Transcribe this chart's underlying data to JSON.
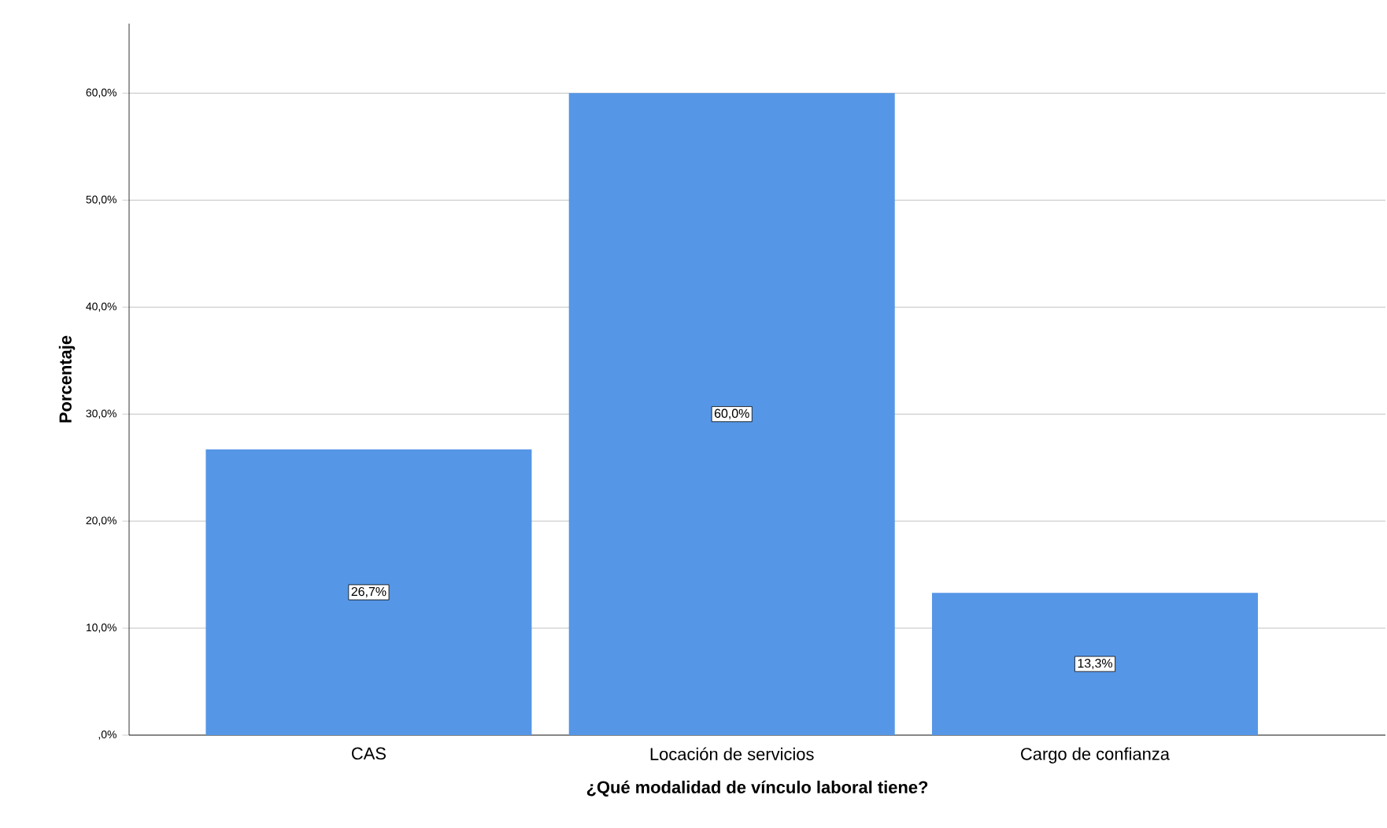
{
  "chart_data": {
    "type": "bar",
    "xlabel": "¿Qué modalidad de vínculo laboral tiene?",
    "ylabel": "Porcentaje",
    "categories": [
      "CAS",
      "Locación de servicios",
      "Cargo de confianza"
    ],
    "values": [
      26.7,
      60.0,
      13.3
    ],
    "value_labels": [
      "26,7%",
      "60,0%",
      "13,3%"
    ],
    "color": "#5596e6",
    "ylim": [
      0,
      66.5
    ],
    "yticks": [
      {
        "value": 0,
        "label": ",0%"
      },
      {
        "value": 10,
        "label": "10,0%"
      },
      {
        "value": 20,
        "label": "20,0%"
      },
      {
        "value": 30,
        "label": "30,0%"
      },
      {
        "value": 40,
        "label": "40,0%"
      },
      {
        "value": 50,
        "label": "50,0%"
      },
      {
        "value": 60,
        "label": "60,0%"
      }
    ],
    "grid": "y"
  }
}
